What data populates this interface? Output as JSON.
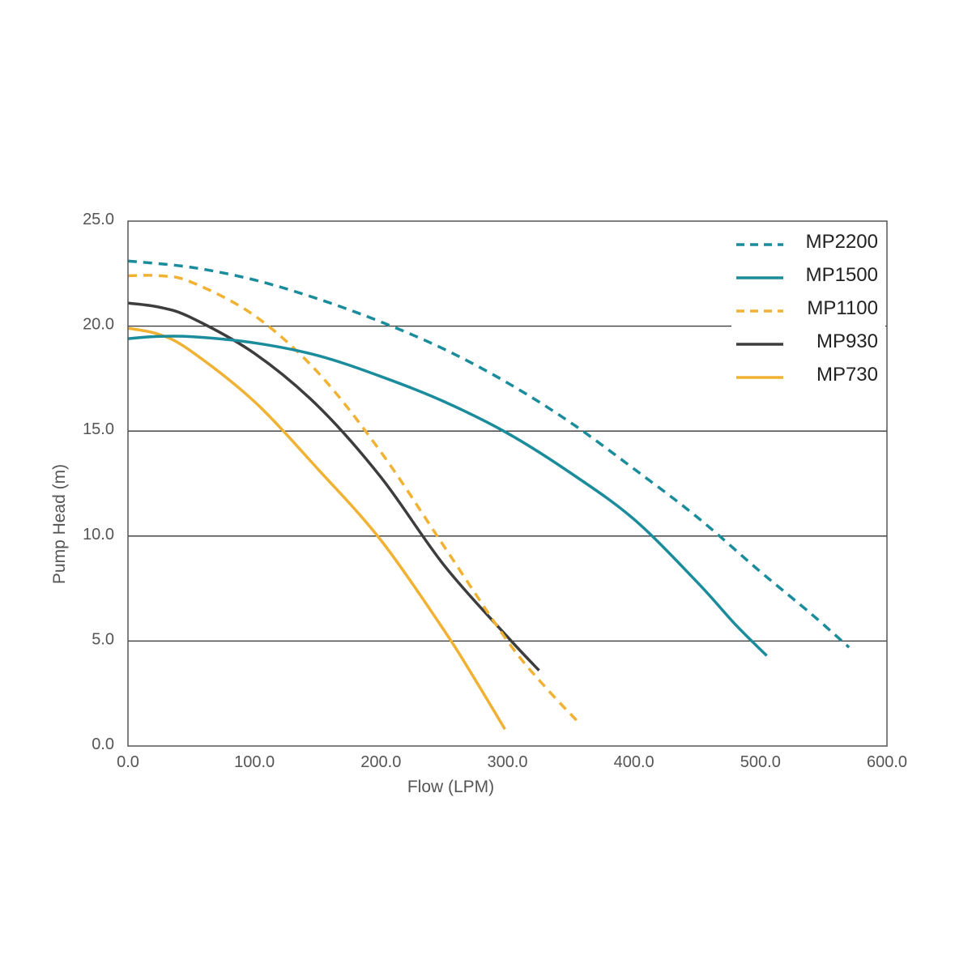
{
  "chart_data": {
    "type": "line",
    "title": "",
    "xlabel": "Flow (LPM)",
    "ylabel": "Pump Head (m)",
    "xlim": [
      0,
      600
    ],
    "ylim": [
      0,
      25
    ],
    "x_ticks": [
      "0.0",
      "100.0",
      "200.0",
      "300.0",
      "400.0",
      "500.0",
      "600.0"
    ],
    "y_ticks": [
      "0.0",
      "5.0",
      "10.0",
      "15.0",
      "20.0",
      "25.0"
    ],
    "horizontal_grid": true,
    "legend_position": "top-right",
    "series": [
      {
        "name": "MP2200",
        "color": "#1a8c9c",
        "dash": "dashed",
        "x": [
          0,
          50,
          100,
          150,
          200,
          250,
          300,
          350,
          400,
          450,
          500,
          540,
          570
        ],
        "y": [
          23.1,
          22.8,
          22.2,
          21.3,
          20.2,
          18.9,
          17.3,
          15.4,
          13.2,
          10.9,
          8.3,
          6.3,
          4.7
        ]
      },
      {
        "name": "MP1500",
        "color": "#1a8c9c",
        "dash": "solid",
        "x": [
          0,
          20,
          50,
          100,
          150,
          200,
          250,
          300,
          350,
          400,
          450,
          480,
          505
        ],
        "y": [
          19.4,
          19.5,
          19.5,
          19.2,
          18.6,
          17.6,
          16.4,
          14.9,
          13.0,
          10.8,
          7.8,
          5.8,
          4.3
        ]
      },
      {
        "name": "MP1100",
        "color": "#f1b234",
        "dash": "dashed",
        "x": [
          0,
          25,
          50,
          100,
          150,
          200,
          250,
          300,
          330,
          355
        ],
        "y": [
          22.4,
          22.4,
          22.1,
          20.5,
          17.8,
          14.0,
          9.5,
          5.0,
          2.8,
          1.2
        ]
      },
      {
        "name": "MP930",
        "color": "#3d3d3d",
        "dash": "solid",
        "x": [
          0,
          25,
          50,
          100,
          150,
          200,
          250,
          300,
          325
        ],
        "y": [
          21.1,
          20.9,
          20.4,
          18.7,
          16.2,
          12.8,
          8.6,
          5.2,
          3.6
        ]
      },
      {
        "name": "MP730",
        "color": "#f1b234",
        "dash": "solid",
        "x": [
          0,
          25,
          50,
          100,
          150,
          200,
          250,
          275,
          298
        ],
        "y": [
          19.9,
          19.6,
          18.8,
          16.4,
          13.2,
          9.8,
          5.5,
          3.1,
          0.8
        ]
      }
    ]
  }
}
